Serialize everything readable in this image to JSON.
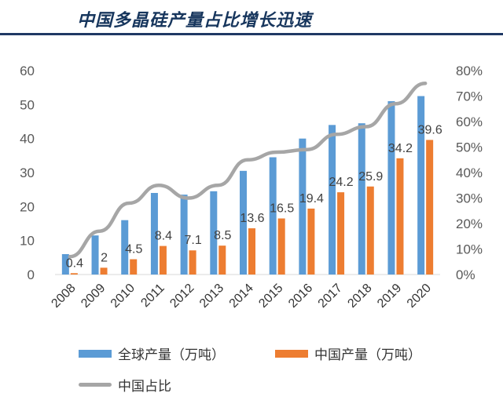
{
  "title": "中国多晶硅产量占比增长迅速",
  "colors": {
    "global_bar": "#5b9bd5",
    "china_bar": "#ed7d31",
    "share_line": "#a6a6a6",
    "title": "#17365d"
  },
  "legend": {
    "global": "全球产量（万吨）",
    "china": "中国产量（万吨）",
    "share": "中国占比"
  },
  "chart_data": {
    "type": "bar",
    "categories": [
      "2008",
      "2009",
      "2010",
      "2011",
      "2012",
      "2013",
      "2014",
      "2015",
      "2016",
      "2017",
      "2018",
      "2019",
      "2020"
    ],
    "series": [
      {
        "name": "全球产量（万吨）",
        "type": "bar",
        "values": [
          6,
          11.5,
          16,
          24,
          23.5,
          24.5,
          30.5,
          34.5,
          40,
          44,
          44.5,
          51,
          52.5
        ]
      },
      {
        "name": "中国产量（万吨）",
        "type": "bar",
        "values": [
          0.4,
          2,
          4.5,
          8.4,
          7.1,
          8.5,
          13.6,
          16.5,
          19.4,
          24.2,
          25.9,
          34.2,
          39.6
        ],
        "data_labels": [
          "0.4",
          "2",
          "4.5",
          "8.4",
          "7.1",
          "8.5",
          "13.6",
          "16.5",
          "19.4",
          "24.2",
          "25.9",
          "34.2",
          "39.6"
        ]
      },
      {
        "name": "中国占比",
        "type": "line",
        "axis": "secondary",
        "values": [
          7,
          17,
          28,
          35,
          30,
          35,
          45,
          48,
          49,
          55,
          58,
          67,
          75
        ]
      }
    ],
    "y_left": {
      "min": 0,
      "max": 60,
      "ticks": [
        "0",
        "10",
        "20",
        "30",
        "40",
        "50",
        "60"
      ]
    },
    "y_right": {
      "min": 0,
      "max": 80,
      "ticks": [
        "0%",
        "10%",
        "20%",
        "30%",
        "40%",
        "50%",
        "60%",
        "70%",
        "80%"
      ]
    },
    "grid": false,
    "legend_position": "bottom"
  }
}
